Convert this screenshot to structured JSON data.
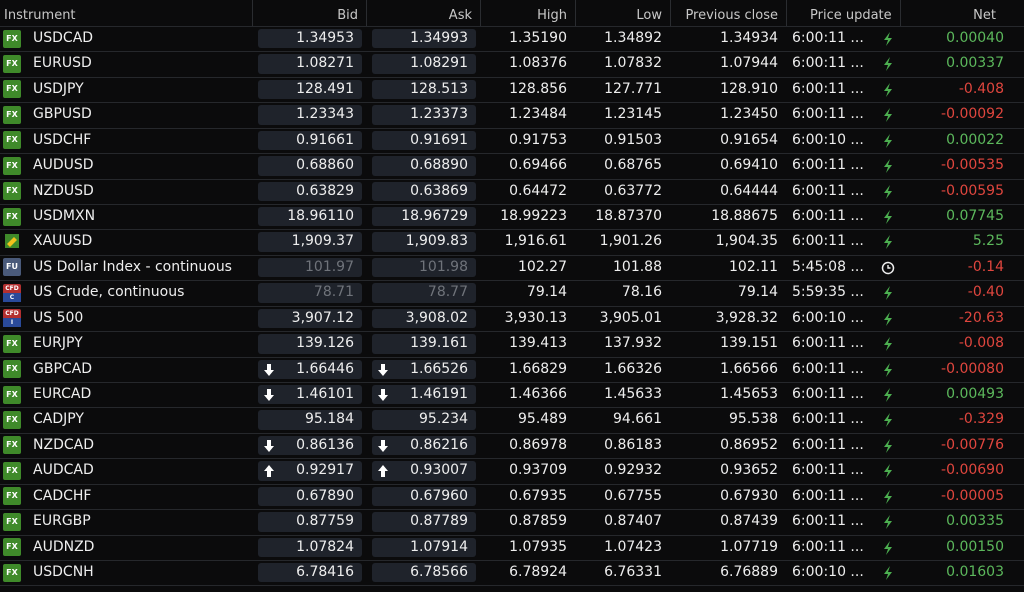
{
  "header": [
    "Instrument",
    "Bid",
    "Ask",
    "High",
    "Low",
    "Previous close",
    "Price update",
    "Net"
  ],
  "rows": [
    {
      "badge": "FX",
      "name": "USDCAD",
      "bid": "1.34953",
      "ask": "1.34993",
      "high": "1.35190",
      "low": "1.34892",
      "prev": "1.34934",
      "time": "6:00:11 ...",
      "update": "bolt",
      "net": "0.00040"
    },
    {
      "badge": "FX",
      "name": "EURUSD",
      "bid": "1.08271",
      "ask": "1.08291",
      "high": "1.08376",
      "low": "1.07832",
      "prev": "1.07944",
      "time": "6:00:11 ...",
      "update": "bolt",
      "net": "0.00337"
    },
    {
      "badge": "FX",
      "name": "USDJPY",
      "bid": "128.491",
      "ask": "128.513",
      "high": "128.856",
      "low": "127.771",
      "prev": "128.910",
      "time": "6:00:11 ...",
      "update": "bolt",
      "net": "-0.408"
    },
    {
      "badge": "FX",
      "name": "GBPUSD",
      "bid": "1.23343",
      "ask": "1.23373",
      "high": "1.23484",
      "low": "1.23145",
      "prev": "1.23450",
      "time": "6:00:11 ...",
      "update": "bolt",
      "net": "-0.00092"
    },
    {
      "badge": "FX",
      "name": "USDCHF",
      "bid": "0.91661",
      "ask": "0.91691",
      "high": "0.91753",
      "low": "0.91503",
      "prev": "0.91654",
      "time": "6:00:10 ...",
      "update": "bolt",
      "net": "0.00022"
    },
    {
      "badge": "FX",
      "name": "AUDUSD",
      "bid": "0.68860",
      "ask": "0.68890",
      "high": "0.69466",
      "low": "0.68765",
      "prev": "0.69410",
      "time": "6:00:11 ...",
      "update": "bolt",
      "net": "-0.00535"
    },
    {
      "badge": "FX",
      "name": "NZDUSD",
      "bid": "0.63829",
      "ask": "0.63869",
      "high": "0.64472",
      "low": "0.63772",
      "prev": "0.64444",
      "time": "6:00:11 ...",
      "update": "bolt",
      "net": "-0.00595"
    },
    {
      "badge": "FX",
      "name": "USDMXN",
      "bid": "18.96110",
      "ask": "18.96729",
      "high": "18.99223",
      "low": "18.87370",
      "prev": "18.88675",
      "time": "6:00:11 ...",
      "update": "bolt",
      "net": "0.07745"
    },
    {
      "gold": true,
      "name": "XAUUSD",
      "bid": "1,909.37",
      "ask": "1,909.83",
      "high": "1,916.61",
      "low": "1,901.26",
      "prev": "1,904.35",
      "time": "6:00:11 ...",
      "update": "bolt",
      "net": "5.25"
    },
    {
      "badge": "FU",
      "name": "US Dollar Index - continuous",
      "bid": "101.97",
      "ask": "101.98",
      "high": "102.27",
      "low": "101.88",
      "prev": "102.11",
      "time": "5:45:08 ...",
      "update": "clock",
      "net": "-0.14",
      "stale": true
    },
    {
      "badge": "CFD",
      "badge_sub": "C",
      "name": "US Crude, continuous",
      "bid": "78.71",
      "ask": "78.77",
      "high": "79.14",
      "low": "78.16",
      "prev": "79.14",
      "time": "5:59:35 ...",
      "update": "bolt",
      "net": "-0.40",
      "stale": true
    },
    {
      "badge": "CFD",
      "badge_sub": "I",
      "name": "US 500",
      "bid": "3,907.12",
      "ask": "3,908.02",
      "high": "3,930.13",
      "low": "3,905.01",
      "prev": "3,928.32",
      "time": "6:00:10 ...",
      "update": "bolt",
      "net": "-20.63"
    },
    {
      "badge": "FX",
      "name": "EURJPY",
      "bid": "139.126",
      "ask": "139.161",
      "high": "139.413",
      "low": "137.932",
      "prev": "139.151",
      "time": "6:00:11 ...",
      "update": "bolt",
      "net": "-0.008"
    },
    {
      "badge": "FX",
      "name": "GBPCAD",
      "arrow": "down",
      "bid": "1.66446",
      "ask": "1.66526",
      "high": "1.66829",
      "low": "1.66326",
      "prev": "1.66566",
      "time": "6:00:11 ...",
      "update": "bolt",
      "net": "-0.00080"
    },
    {
      "badge": "FX",
      "name": "EURCAD",
      "arrow": "down",
      "bid": "1.46101",
      "ask": "1.46191",
      "high": "1.46366",
      "low": "1.45633",
      "prev": "1.45653",
      "time": "6:00:11 ...",
      "update": "bolt",
      "net": "0.00493"
    },
    {
      "badge": "FX",
      "name": "CADJPY",
      "bid": "95.184",
      "ask": "95.234",
      "high": "95.489",
      "low": "94.661",
      "prev": "95.538",
      "time": "6:00:11 ...",
      "update": "bolt",
      "net": "-0.329"
    },
    {
      "badge": "FX",
      "name": "NZDCAD",
      "arrow": "down",
      "bid": "0.86136",
      "ask": "0.86216",
      "high": "0.86978",
      "low": "0.86183",
      "prev": "0.86952",
      "time": "6:00:11 ...",
      "update": "bolt",
      "net": "-0.00776"
    },
    {
      "badge": "FX",
      "name": "AUDCAD",
      "arrow": "up",
      "bid": "0.92917",
      "ask": "0.93007",
      "high": "0.93709",
      "low": "0.92932",
      "prev": "0.93652",
      "time": "6:00:11 ...",
      "update": "bolt",
      "net": "-0.00690"
    },
    {
      "badge": "FX",
      "name": "CADCHF",
      "bid": "0.67890",
      "ask": "0.67960",
      "high": "0.67935",
      "low": "0.67755",
      "prev": "0.67930",
      "time": "6:00:11 ...",
      "update": "bolt",
      "net": "-0.00005"
    },
    {
      "badge": "FX",
      "name": "EURGBP",
      "bid": "0.87759",
      "ask": "0.87789",
      "high": "0.87859",
      "low": "0.87407",
      "prev": "0.87439",
      "time": "6:00:11 ...",
      "update": "bolt",
      "net": "0.00335"
    },
    {
      "badge": "FX",
      "name": "AUDNZD",
      "bid": "1.07824",
      "ask": "1.07914",
      "high": "1.07935",
      "low": "1.07423",
      "prev": "1.07719",
      "time": "6:00:11 ...",
      "update": "bolt",
      "net": "0.00150"
    },
    {
      "badge": "FX",
      "name": "USDCNH",
      "bid": "6.78416",
      "ask": "6.78566",
      "high": "6.78924",
      "low": "6.76331",
      "prev": "6.76889",
      "time": "6:00:10 ...",
      "update": "bolt",
      "net": "0.01603"
    }
  ]
}
